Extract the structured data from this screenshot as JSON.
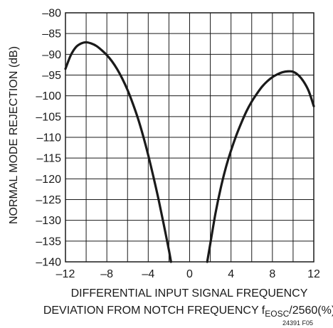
{
  "chart_data": {
    "type": "line",
    "xlabel_line1": "DIFFERENTIAL INPUT SIGNAL FREQUENCY",
    "xlabel_line2_prefix": "DEVIATION FROM NOTCH FREQUENCY f",
    "xlabel_line2_subscript": "EOSC",
    "xlabel_line2_suffix": "/2560(%)",
    "ylabel": "NORMAL MODE REJECTION (dB)",
    "figure_id": "24391 F05",
    "xlim": [
      -12,
      12
    ],
    "ylim": [
      -140,
      -80
    ],
    "grid": true,
    "x_ticks": [
      -12,
      -8,
      -4,
      0,
      4,
      8,
      12
    ],
    "x_tick_labels": [
      "–12",
      "–8",
      "–4",
      "0",
      "4",
      "8",
      "12"
    ],
    "y_ticks": [
      -80,
      -85,
      -90,
      -95,
      -100,
      -105,
      -110,
      -115,
      -120,
      -125,
      -130,
      -135,
      -140
    ],
    "y_tick_labels": [
      "–80",
      "–85",
      "–90",
      "–95",
      "–100",
      "–105",
      "–110",
      "–115",
      "–120",
      "–125",
      "–130",
      "–135",
      "–140"
    ],
    "x_grid_step": 2,
    "y_grid_step": 5,
    "line_color": "#1a1a1a",
    "series": [
      {
        "segments": [
          {
            "x": [
              -12,
              -11.5,
              -11,
              -10.5,
              -10,
              -9.5,
              -9,
              -8.5,
              -8,
              -7.5,
              -7,
              -6.5,
              -6,
              -5.5,
              -5,
              -4.5,
              -4,
              -3.5,
              -3,
              -2.5,
              -2,
              -1.8
            ],
            "y": [
              -93.5,
              -90.3,
              -88.3,
              -87.4,
              -87.1,
              -87.4,
              -88.0,
              -89.0,
              -90.2,
              -91.7,
              -93.6,
              -95.9,
              -98.6,
              -101.8,
              -105.4,
              -109.6,
              -114.3,
              -119.5,
              -125.0,
              -131.0,
              -137.2,
              -140
            ]
          },
          {
            "x": [
              1.7,
              2,
              2.5,
              3,
              3.5,
              4,
              4.5,
              5,
              5.5,
              6,
              6.5,
              7,
              7.5,
              8,
              8.5,
              9,
              9.5,
              10,
              10.5,
              11,
              11.5,
              12
            ],
            "y": [
              -140,
              -135.6,
              -128.3,
              -122.3,
              -117.3,
              -113.2,
              -109.6,
              -106.5,
              -103.7,
              -101.4,
              -99.5,
              -97.8,
              -96.5,
              -95.5,
              -94.8,
              -94.3,
              -94.1,
              -94.2,
              -95.0,
              -96.5,
              -98.8,
              -102.5
            ]
          }
        ]
      }
    ]
  }
}
